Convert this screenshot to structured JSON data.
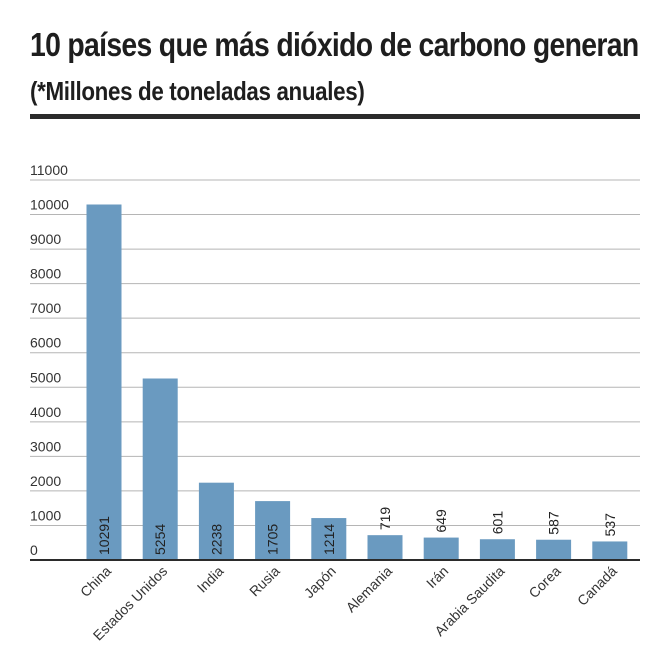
{
  "title": "10 países que más dióxido de carbono generan",
  "subtitle": "(*Millones de toneladas anuales)",
  "chart_data": {
    "type": "bar",
    "title": "10 países que más dióxido de carbono generan",
    "subtitle": "(*Millones de toneladas anuales)",
    "xlabel": "",
    "ylabel": "",
    "categories": [
      "China",
      "Estados Unidos",
      "India",
      "Rusia",
      "Japón",
      "Alemania",
      "Irán",
      "Arabia Saudita",
      "Corea",
      "Canadá"
    ],
    "values": [
      10291,
      5254,
      2238,
      1705,
      1214,
      719,
      649,
      601,
      587,
      537
    ],
    "value_labels": [
      "10291",
      "5254",
      "2238",
      "1705",
      "1214",
      "719",
      "649",
      "601",
      "587",
      "537"
    ],
    "yticks": [
      0,
      1000,
      2000,
      3000,
      4000,
      5000,
      6000,
      7000,
      8000,
      9000,
      10000,
      11000
    ],
    "ytick_labels": [
      "0",
      "1000",
      "2000",
      "3000",
      "4000",
      "5000",
      "6000",
      "7000",
      "8000",
      "9000",
      "10000",
      "11000"
    ],
    "ylim": [
      0,
      11000
    ],
    "grid": true,
    "legend": "none",
    "bar_color": "#6a9ac0"
  }
}
